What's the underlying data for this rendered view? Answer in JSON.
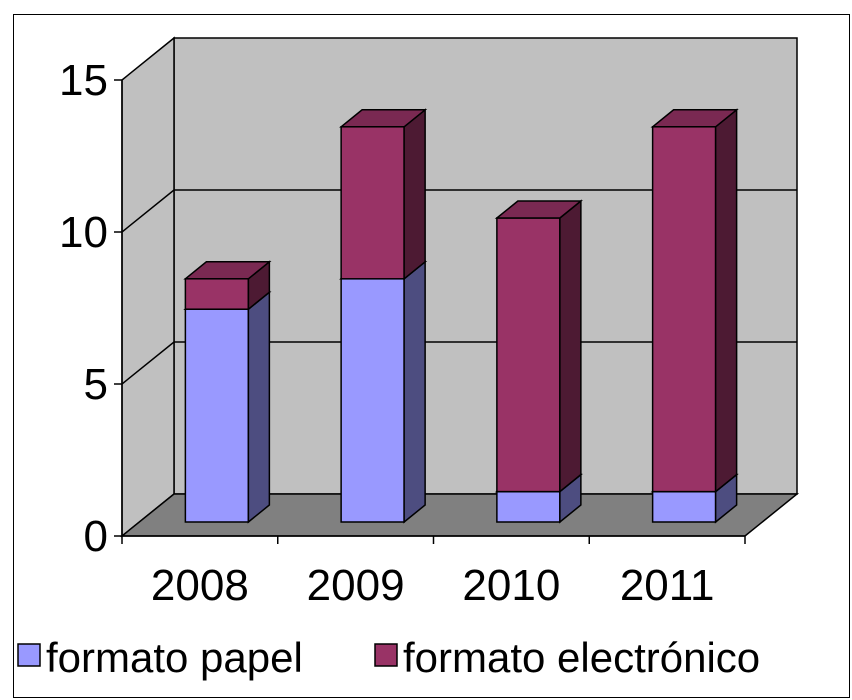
{
  "chart_data": {
    "type": "bar",
    "stacked": true,
    "three_d": true,
    "categories": [
      "2008",
      "2009",
      "2010",
      "2011"
    ],
    "series": [
      {
        "name": "formato papel",
        "values": [
          7,
          8,
          1,
          1
        ],
        "color": "#9999ff",
        "side_color": "#4d4d80",
        "top_color": "#7777cc"
      },
      {
        "name": "formato electrónico",
        "values": [
          1,
          5,
          9,
          12
        ],
        "color": "#993366",
        "side_color": "#4d1a33",
        "top_color": "#7a2952"
      }
    ],
    "title": "",
    "xlabel": "",
    "ylabel": "",
    "ylim": [
      0,
      15
    ],
    "yticks": [
      0,
      5,
      10,
      15
    ],
    "grid": true,
    "legend": "bottom",
    "wall_color": "#c0c0c0",
    "floor_color": "#808080"
  }
}
